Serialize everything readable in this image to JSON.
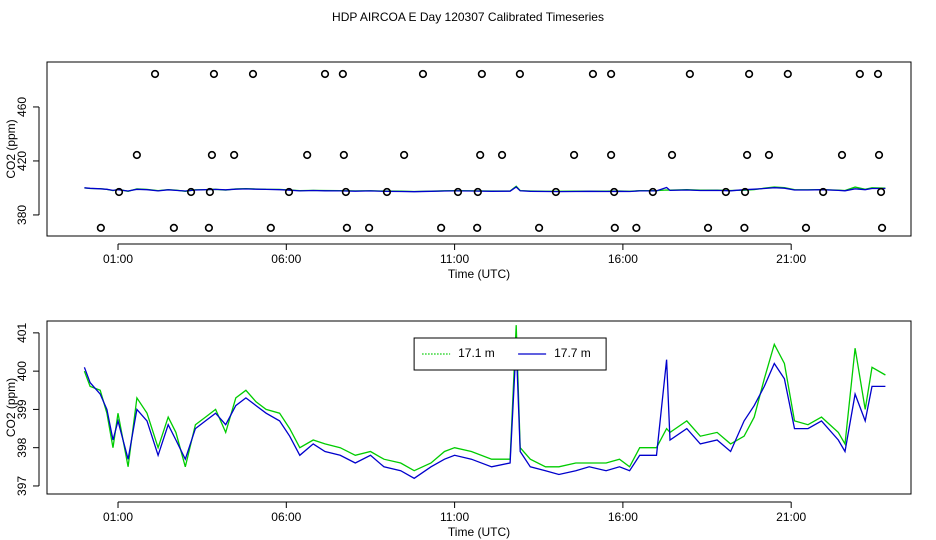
{
  "title": "HDP AIRCOA E  Day 120307  Calibrated Timeseries",
  "chart_data": [
    {
      "type": "scatter",
      "xlabel": "Time (UTC)",
      "ylabel": "CO2 (ppm)",
      "x": [
        2.1,
        3.85,
        5.01,
        7.15,
        7.68,
        10.06,
        11.81,
        12.94,
        15.11,
        15.65,
        17.99,
        19.75,
        20.9,
        23.04,
        23.58,
        1.56,
        3.79,
        4.45,
        6.62,
        7.71,
        9.5,
        11.76,
        12.41,
        14.55,
        15.65,
        17.46,
        19.69,
        20.34,
        22.51,
        23.61,
        1.03,
        3.17,
        3.73,
        6.08,
        7.77,
        8.99,
        11.1,
        11.69,
        14.01,
        15.74,
        16.89,
        19.06,
        19.63,
        21.95,
        23.67,
        0.49,
        2.66,
        3.7,
        5.54,
        7.8,
        8.46,
        10.6,
        11.67,
        13.51,
        15.76,
        16.4,
        18.53,
        19.61,
        21.44,
        23.7
      ],
      "values": [
        484.4,
        484.4,
        484.4,
        484.4,
        484.4,
        484.4,
        484.4,
        484.4,
        484.4,
        484.4,
        484.4,
        484.4,
        484.4,
        484.4,
        484.4,
        424.4,
        424.4,
        424.4,
        424.4,
        424.4,
        424.4,
        424.4,
        424.4,
        424.4,
        424.4,
        424.4,
        424.4,
        424.4,
        424.4,
        424.4,
        397,
        397,
        397,
        397,
        397,
        397,
        397,
        397,
        397,
        397,
        397,
        397,
        397,
        397,
        397,
        370.4,
        370.4,
        370.4,
        370.4,
        370.4,
        370.4,
        370.4,
        370.4,
        370.4,
        370.4,
        370.4,
        370.4,
        370.4,
        370.4,
        370.4
      ],
      "color": "#000000",
      "xlim": [
        -1.11,
        24.56
      ],
      "ylim": [
        364.4,
        493.3
      ],
      "xticks": [
        {
          "value": 1,
          "label": "01:00"
        },
        {
          "value": 6,
          "label": "06:00"
        },
        {
          "value": 11,
          "label": "11:00"
        },
        {
          "value": 16,
          "label": "16:00"
        },
        {
          "value": 21,
          "label": "21:00"
        }
      ],
      "yticks": [
        380,
        420,
        460
      ]
    },
    {
      "type": "line",
      "xlabel": "Time (UTC)",
      "ylabel": "CO2 (ppm)",
      "legend": "top",
      "x": [
        0,
        0.17,
        0.47,
        0.67,
        0.85,
        1.0,
        1.3,
        1.56,
        1.86,
        2.19,
        2.49,
        2.72,
        3.0,
        3.3,
        3.6,
        3.9,
        4.2,
        4.5,
        4.8,
        5.1,
        5.4,
        5.8,
        6.1,
        6.4,
        6.8,
        7.15,
        7.6,
        8.05,
        8.5,
        8.9,
        9.4,
        9.8,
        10.3,
        10.7,
        11.0,
        11.5,
        12.1,
        12.65,
        12.83,
        12.95,
        13.25,
        13.7,
        14.1,
        14.6,
        15.0,
        15.5,
        15.9,
        16.2,
        16.5,
        17.0,
        17.3,
        17.4,
        17.9,
        18.3,
        18.8,
        19.2,
        19.6,
        19.9,
        20.2,
        20.5,
        20.8,
        21.1,
        21.5,
        21.9,
        22.4,
        22.6,
        22.9,
        23.2,
        23.4,
        23.8
      ],
      "series": [
        {
          "name": "17.1 m",
          "color": "#00cc00",
          "dashed": true,
          "values": [
            400.0,
            399.6,
            399.5,
            398.9,
            398.0,
            398.9,
            397.5,
            399.3,
            398.9,
            398.0,
            398.8,
            398.4,
            397.5,
            398.6,
            398.8,
            399.0,
            398.4,
            399.3,
            399.5,
            399.2,
            399.0,
            398.9,
            398.5,
            398.0,
            398.2,
            398.1,
            398.0,
            397.8,
            397.9,
            397.7,
            397.6,
            397.4,
            397.6,
            397.9,
            398.0,
            397.9,
            397.7,
            397.7,
            401.2,
            398.0,
            397.7,
            397.5,
            397.5,
            397.6,
            397.6,
            397.6,
            397.7,
            397.5,
            398.0,
            398.0,
            398.5,
            398.4,
            398.7,
            398.3,
            398.4,
            398.1,
            398.3,
            398.8,
            399.8,
            400.7,
            400.2,
            398.7,
            398.6,
            398.8,
            398.4,
            398.1,
            400.6,
            399.0,
            400.1,
            399.9
          ]
        },
        {
          "name": "17.7 m",
          "color": "#0000cc",
          "dashed": false,
          "values": [
            400.1,
            399.7,
            399.4,
            399.0,
            398.2,
            398.7,
            397.7,
            399.0,
            398.7,
            397.8,
            398.6,
            398.2,
            397.7,
            398.5,
            398.7,
            398.9,
            398.6,
            399.1,
            399.3,
            399.1,
            398.9,
            398.7,
            398.3,
            397.8,
            398.1,
            397.9,
            397.8,
            397.6,
            397.8,
            397.5,
            397.4,
            397.2,
            397.5,
            397.7,
            397.8,
            397.7,
            397.5,
            397.6,
            400.7,
            397.9,
            397.5,
            397.4,
            397.3,
            397.4,
            397.5,
            397.4,
            397.5,
            397.4,
            397.8,
            397.8,
            400.3,
            398.2,
            398.5,
            398.1,
            398.2,
            397.9,
            398.7,
            399.1,
            399.6,
            400.2,
            399.8,
            398.5,
            398.5,
            398.7,
            398.2,
            397.9,
            399.4,
            398.7,
            399.6,
            399.6
          ]
        }
      ],
      "xlim": [
        -1.11,
        24.56
      ],
      "ylim": [
        396.79,
        401.31
      ],
      "xticks": [
        {
          "value": 1,
          "label": "01:00"
        },
        {
          "value": 6,
          "label": "06:00"
        },
        {
          "value": 11,
          "label": "11:00"
        },
        {
          "value": 16,
          "label": "16:00"
        },
        {
          "value": 21,
          "label": "21:00"
        }
      ],
      "yticks": [
        397,
        398,
        399,
        400,
        401
      ]
    }
  ]
}
